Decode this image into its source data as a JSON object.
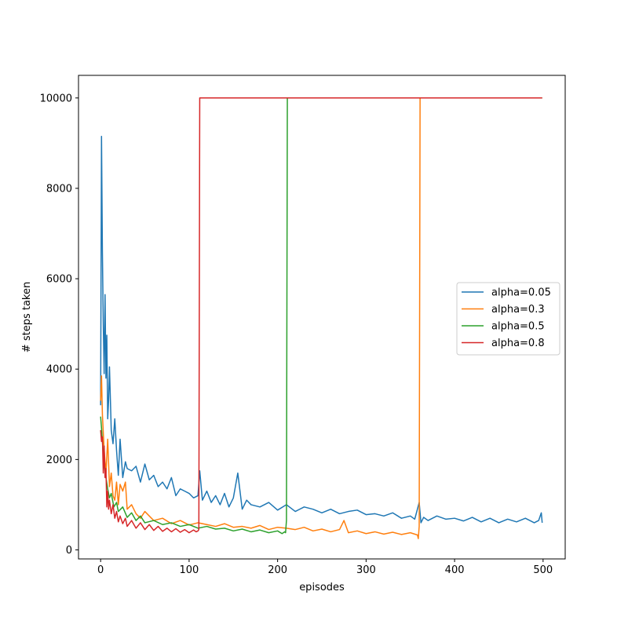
{
  "chart_data": {
    "type": "line",
    "title": "",
    "xlabel": "episodes",
    "ylabel": "# steps taken",
    "xlim": [
      -25,
      525
    ],
    "ylim": [
      -200,
      10500
    ],
    "xticks": [
      0,
      100,
      200,
      300,
      400,
      500
    ],
    "yticks": [
      0,
      2000,
      4000,
      6000,
      8000,
      10000
    ],
    "grid": false,
    "legend_position": "center-right",
    "series": [
      {
        "name": "alpha=0.05",
        "color": "#1f77b4",
        "x": [
          0,
          1,
          2,
          3,
          4,
          5,
          6,
          7,
          8,
          9,
          10,
          12,
          14,
          16,
          18,
          20,
          22,
          25,
          28,
          30,
          35,
          40,
          45,
          50,
          55,
          60,
          65,
          70,
          75,
          80,
          85,
          90,
          95,
          100,
          105,
          110,
          112,
          115,
          120,
          125,
          130,
          135,
          140,
          145,
          150,
          155,
          160,
          165,
          170,
          180,
          190,
          200,
          210,
          220,
          230,
          240,
          250,
          260,
          270,
          280,
          290,
          300,
          310,
          320,
          330,
          340,
          350,
          355,
          360,
          362,
          365,
          370,
          380,
          390,
          400,
          410,
          420,
          430,
          440,
          450,
          460,
          470,
          480,
          490,
          495,
          498,
          499
        ],
        "y": [
          3200,
          9150,
          6600,
          5000,
          3900,
          5650,
          3800,
          4750,
          2900,
          3300,
          4050,
          2650,
          2350,
          2900,
          2200,
          1650,
          2450,
          1600,
          1950,
          1800,
          1750,
          1850,
          1500,
          1900,
          1550,
          1650,
          1400,
          1500,
          1350,
          1600,
          1200,
          1350,
          1300,
          1250,
          1150,
          1200,
          1750,
          1100,
          1300,
          1050,
          1200,
          1000,
          1250,
          950,
          1150,
          1700,
          900,
          1100,
          1000,
          950,
          1050,
          880,
          1000,
          850,
          950,
          900,
          820,
          900,
          800,
          850,
          880,
          780,
          800,
          750,
          820,
          700,
          750,
          680,
          1050,
          600,
          720,
          650,
          750,
          680,
          700,
          640,
          720,
          620,
          700,
          600,
          680,
          620,
          700,
          600,
          650,
          820,
          600
        ]
      },
      {
        "name": "alpha=0.3",
        "color": "#ff7f0e",
        "x": [
          0,
          1,
          2,
          4,
          6,
          8,
          10,
          12,
          14,
          16,
          18,
          20,
          22,
          25,
          28,
          30,
          35,
          40,
          45,
          50,
          60,
          70,
          80,
          90,
          100,
          110,
          120,
          130,
          140,
          150,
          160,
          170,
          180,
          190,
          200,
          210,
          220,
          230,
          240,
          250,
          260,
          270,
          275,
          280,
          290,
          300,
          310,
          320,
          330,
          340,
          350,
          358,
          359,
          360,
          361,
          362,
          365,
          380,
          400,
          450,
          499
        ],
        "y": [
          3300,
          3850,
          3000,
          2200,
          1700,
          2450,
          1400,
          1700,
          1200,
          1100,
          1500,
          1000,
          1450,
          1300,
          1500,
          900,
          1000,
          800,
          700,
          850,
          650,
          700,
          580,
          650,
          550,
          600,
          560,
          520,
          580,
          500,
          520,
          480,
          540,
          450,
          500,
          480,
          450,
          500,
          420,
          460,
          400,
          450,
          650,
          380,
          420,
          360,
          400,
          350,
          390,
          340,
          380,
          330,
          250,
          520,
          10000,
          10000,
          10000,
          10000,
          10000,
          10000,
          10000
        ]
      },
      {
        "name": "alpha=0.5",
        "color": "#2ca02c",
        "x": [
          0,
          1,
          2,
          4,
          6,
          8,
          10,
          12,
          15,
          18,
          20,
          25,
          30,
          35,
          40,
          45,
          50,
          60,
          70,
          80,
          90,
          100,
          110,
          120,
          130,
          140,
          150,
          160,
          170,
          180,
          190,
          200,
          205,
          208,
          209,
          210,
          211,
          215,
          250,
          300,
          350,
          400,
          450,
          499
        ],
        "y": [
          2950,
          2700,
          2400,
          1900,
          1600,
          1350,
          1150,
          1250,
          950,
          1050,
          850,
          950,
          720,
          820,
          650,
          750,
          600,
          650,
          560,
          600,
          520,
          560,
          480,
          520,
          460,
          480,
          420,
          460,
          400,
          440,
          380,
          420,
          360,
          400,
          380,
          650,
          10000,
          10000,
          10000,
          10000,
          10000,
          10000,
          10000,
          10000
        ]
      },
      {
        "name": "alpha=0.8",
        "color": "#d62728",
        "x": [
          0,
          1,
          2,
          3,
          4,
          5,
          6,
          7,
          8,
          9,
          10,
          12,
          14,
          16,
          18,
          20,
          22,
          25,
          28,
          30,
          35,
          40,
          45,
          50,
          55,
          60,
          65,
          70,
          75,
          80,
          85,
          90,
          95,
          100,
          105,
          108,
          110,
          111,
          112,
          115,
          200,
          300,
          400,
          499
        ],
        "y": [
          2650,
          2400,
          2500,
          1700,
          2300,
          1600,
          1800,
          950,
          1300,
          900,
          1100,
          800,
          1000,
          700,
          850,
          620,
          750,
          580,
          700,
          520,
          650,
          480,
          600,
          450,
          560,
          430,
          520,
          410,
          480,
          400,
          470,
          390,
          450,
          380,
          440,
          400,
          420,
          450,
          10000,
          10000,
          10000,
          10000,
          10000,
          10000
        ]
      }
    ]
  }
}
